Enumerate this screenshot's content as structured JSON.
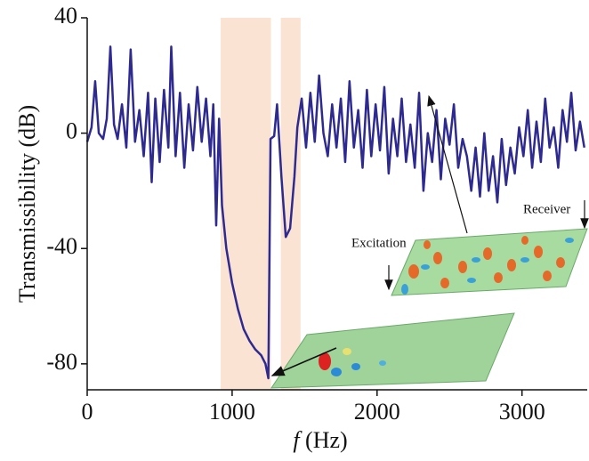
{
  "chart_data": {
    "type": "line",
    "xlabel_symbol": "f",
    "xlabel_unit": "(Hz)",
    "ylabel": "Transmissibility (dB)",
    "xlim": [
      0,
      3450
    ],
    "ylim": [
      -89,
      40
    ],
    "xticks": [
      0,
      1000,
      2000,
      3000
    ],
    "yticks": [
      -80,
      -40,
      0,
      40
    ],
    "shaded_regions": [
      [
        921,
        1268
      ],
      [
        1336,
        1472
      ]
    ],
    "shade_color": "#fbe3d3",
    "annotations": [
      "Excitation",
      "Receiver"
    ],
    "x": [
      0,
      30,
      55,
      80,
      110,
      135,
      160,
      185,
      210,
      240,
      270,
      300,
      330,
      360,
      390,
      420,
      445,
      470,
      500,
      530,
      560,
      580,
      610,
      640,
      670,
      700,
      730,
      760,
      790,
      820,
      850,
      870,
      890,
      910,
      930,
      960,
      1000,
      1040,
      1080,
      1120,
      1160,
      1200,
      1230,
      1250,
      1265,
      1290,
      1310,
      1340,
      1370,
      1400,
      1430,
      1450,
      1480,
      1510,
      1540,
      1570,
      1600,
      1630,
      1660,
      1690,
      1720,
      1750,
      1780,
      1810,
      1840,
      1870,
      1900,
      1930,
      1960,
      1990,
      2020,
      2050,
      2080,
      2110,
      2140,
      2170,
      2200,
      2230,
      2260,
      2290,
      2320,
      2350,
      2380,
      2410,
      2440,
      2470,
      2500,
      2530,
      2560,
      2590,
      2620,
      2650,
      2680,
      2710,
      2740,
      2770,
      2800,
      2830,
      2860,
      2890,
      2920,
      2950,
      2980,
      3010,
      3040,
      3070,
      3100,
      3130,
      3160,
      3190,
      3220,
      3250,
      3280,
      3310,
      3340,
      3370,
      3400,
      3430
    ],
    "series": [
      {
        "color": "#2e2a8f",
        "values": [
          -3,
          2,
          18,
          0,
          -2,
          5,
          30,
          3,
          -2,
          10,
          -5,
          29,
          -3,
          8,
          -8,
          14,
          -17,
          12,
          -10,
          15,
          -5,
          30,
          -8,
          14,
          -12,
          10,
          -6,
          16,
          -3,
          12,
          -8,
          10,
          -32,
          5,
          -25,
          -40,
          -52,
          -61,
          -68,
          -72,
          -75,
          -77,
          -80,
          -85,
          -2,
          -1,
          10,
          -15,
          -36,
          -33,
          -15,
          2,
          12,
          -5,
          14,
          -3,
          20,
          0,
          -8,
          10,
          -5,
          12,
          -10,
          18,
          -5,
          8,
          -12,
          15,
          -8,
          10,
          -6,
          16,
          -14,
          5,
          -8,
          12,
          -10,
          3,
          -12,
          14,
          -20,
          0,
          -10,
          8,
          -16,
          5,
          -4,
          10,
          -12,
          -2,
          -8,
          -20,
          -5,
          -22,
          0,
          -20,
          -8,
          -24,
          -2,
          -18,
          -5,
          -14,
          2,
          -8,
          8,
          -12,
          4,
          -10,
          12,
          -5,
          2,
          -12,
          8,
          -3,
          14,
          -6,
          4,
          -5
        ]
      }
    ]
  }
}
